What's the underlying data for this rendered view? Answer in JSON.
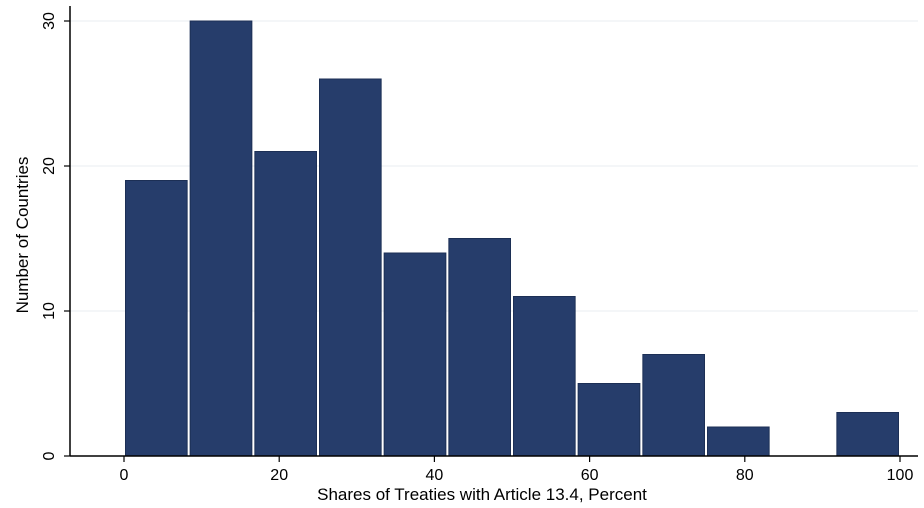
{
  "chart_data": {
    "type": "bar",
    "subtype": "histogram",
    "bin_width": 8.33,
    "bins": [
      {
        "start": 0.0,
        "end": 8.33,
        "count": 19
      },
      {
        "start": 8.33,
        "end": 16.67,
        "count": 30
      },
      {
        "start": 16.67,
        "end": 25.0,
        "count": 21
      },
      {
        "start": 25.0,
        "end": 33.33,
        "count": 26
      },
      {
        "start": 33.33,
        "end": 41.67,
        "count": 14
      },
      {
        "start": 41.67,
        "end": 50.0,
        "count": 15
      },
      {
        "start": 50.0,
        "end": 58.33,
        "count": 11
      },
      {
        "start": 58.33,
        "end": 66.67,
        "count": 5
      },
      {
        "start": 66.67,
        "end": 75.0,
        "count": 7
      },
      {
        "start": 75.0,
        "end": 83.33,
        "count": 2
      },
      {
        "start": 83.33,
        "end": 91.67,
        "count": 0
      },
      {
        "start": 91.67,
        "end": 100.0,
        "count": 3
      }
    ],
    "xlabel": "Shares of Treaties with Article 13.4, Percent",
    "ylabel": "Number of Countries",
    "xlim": [
      0,
      100
    ],
    "ylim": [
      0,
      30
    ],
    "xticks": [
      0,
      20,
      40,
      60,
      80,
      100
    ],
    "yticks": [
      0,
      10,
      20,
      30
    ],
    "grid": "horizontal",
    "bar_color": "#263d6b",
    "grid_color": "#e8edf2"
  }
}
